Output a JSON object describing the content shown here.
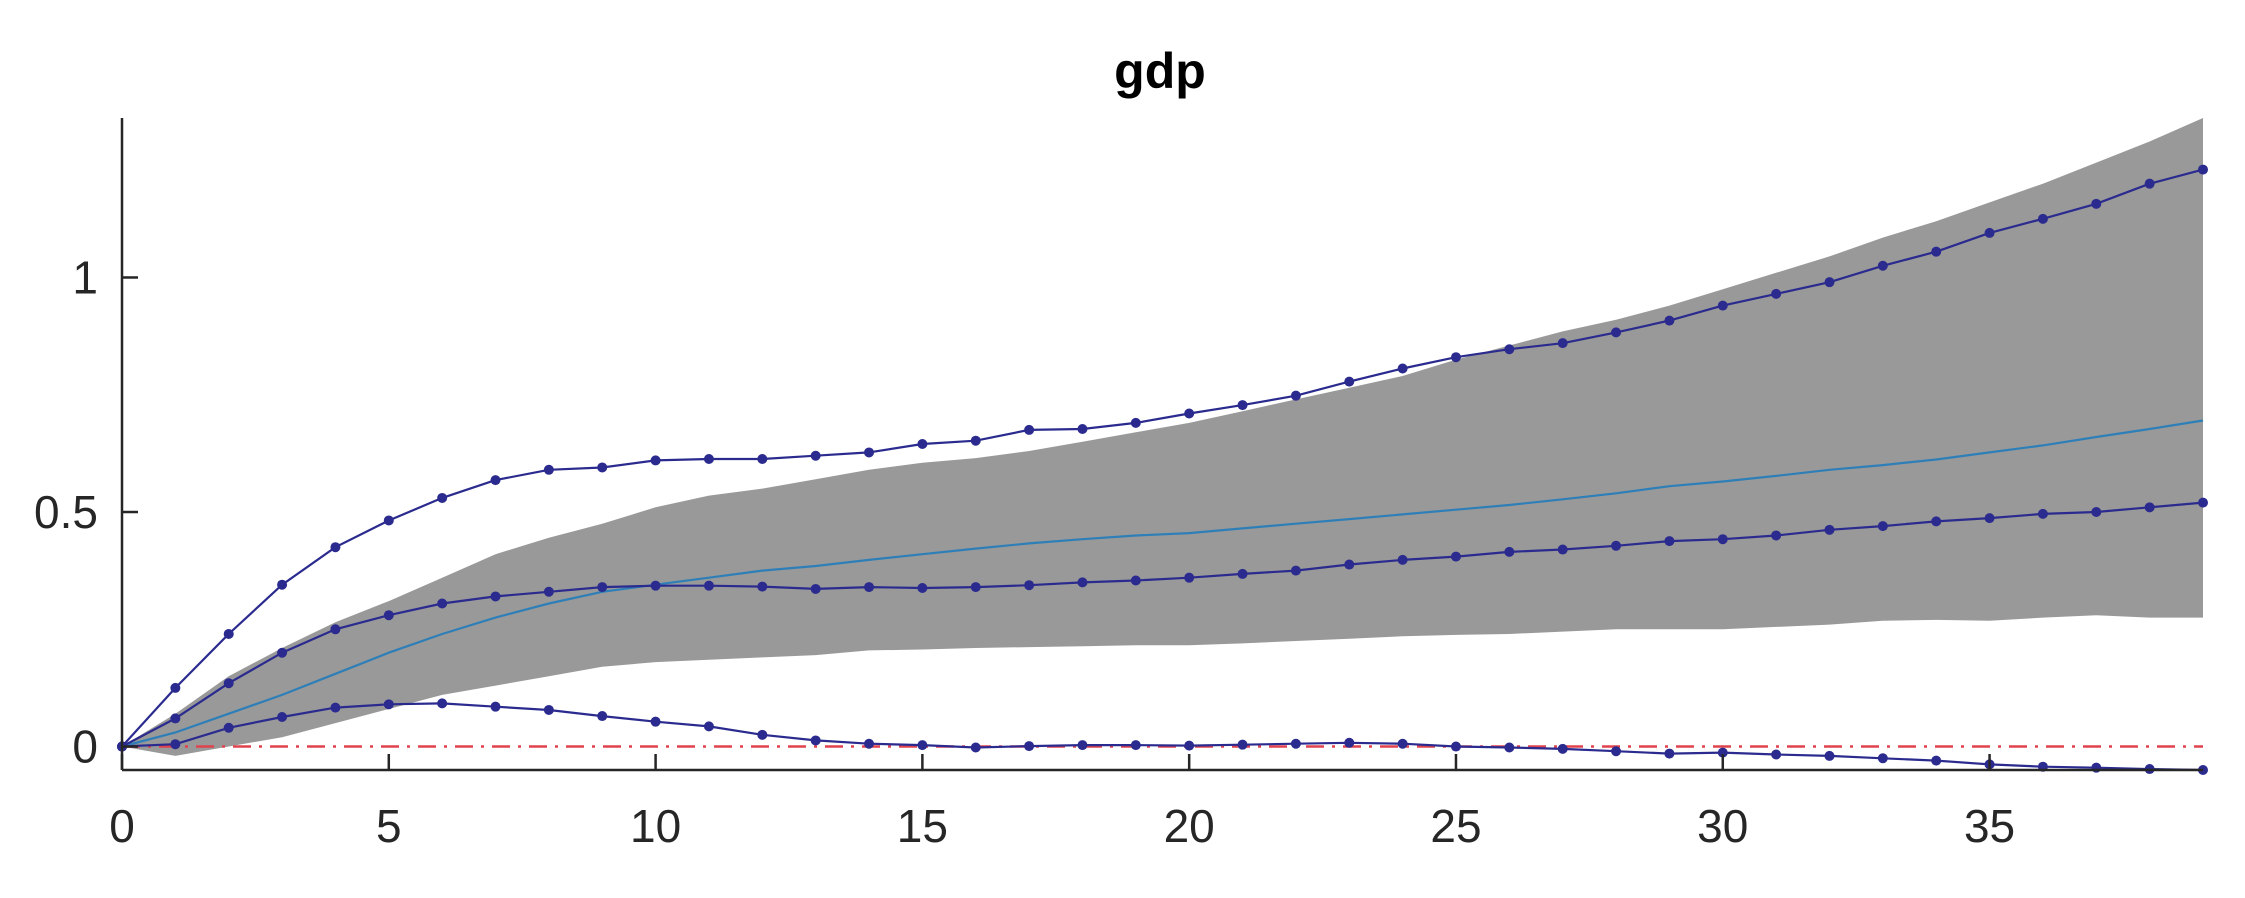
{
  "chart_data": {
    "type": "line",
    "title": "gdp",
    "xlabel": "",
    "ylabel": "",
    "xlim": [
      0,
      39
    ],
    "ylim": [
      -0.05,
      1.34
    ],
    "xticks": [
      0,
      5,
      10,
      15,
      20,
      25,
      30,
      35
    ],
    "xtick_labels": [
      "0",
      "5",
      "10",
      "15",
      "20",
      "25",
      "30",
      "35"
    ],
    "yticks": [
      0,
      0.5,
      1
    ],
    "ytick_labels": [
      "0",
      "0.5",
      "1"
    ],
    "grid": false,
    "legend": "none",
    "x": [
      0,
      1,
      2,
      3,
      4,
      5,
      6,
      7,
      8,
      9,
      10,
      11,
      12,
      13,
      14,
      15,
      16,
      17,
      18,
      19,
      20,
      21,
      22,
      23,
      24,
      25,
      26,
      27,
      28,
      29,
      30,
      31,
      32,
      33,
      34,
      35,
      36,
      37,
      38,
      39
    ],
    "band": {
      "color": "#999999",
      "lower": [
        0,
        -0.02,
        0,
        0.02,
        0.05,
        0.08,
        0.11,
        0.13,
        0.15,
        0.17,
        0.18,
        0.185,
        0.19,
        0.195,
        0.205,
        0.207,
        0.21,
        0.212,
        0.214,
        0.216,
        0.216,
        0.22,
        0.225,
        0.23,
        0.235,
        0.238,
        0.24,
        0.245,
        0.25,
        0.25,
        0.25,
        0.255,
        0.26,
        0.268,
        0.27,
        0.268,
        0.275,
        0.28,
        0.275,
        0.275
      ],
      "upper": [
        0,
        0.07,
        0.15,
        0.21,
        0.265,
        0.31,
        0.36,
        0.41,
        0.445,
        0.475,
        0.51,
        0.535,
        0.55,
        0.57,
        0.59,
        0.605,
        0.615,
        0.63,
        0.65,
        0.67,
        0.69,
        0.715,
        0.74,
        0.765,
        0.79,
        0.825,
        0.855,
        0.885,
        0.91,
        0.94,
        0.975,
        1.01,
        1.045,
        1.085,
        1.12,
        1.16,
        1.2,
        1.245,
        1.29,
        1.34
      ]
    },
    "series": [
      {
        "role": "median",
        "color": "#2e7fb8",
        "markers": false,
        "values": [
          0,
          0.03,
          0.07,
          0.11,
          0.155,
          0.2,
          0.24,
          0.275,
          0.305,
          0.33,
          0.345,
          0.36,
          0.375,
          0.385,
          0.398,
          0.41,
          0.422,
          0.433,
          0.442,
          0.45,
          0.455,
          0.465,
          0.475,
          0.485,
          0.495,
          0.505,
          0.515,
          0.527,
          0.54,
          0.555,
          0.565,
          0.577,
          0.59,
          0.6,
          0.612,
          0.627,
          0.642,
          0.66,
          0.677,
          0.695
        ]
      },
      {
        "role": "upper-dotted",
        "color": "#2b2b8f",
        "markers": true,
        "values": [
          0,
          0.125,
          0.24,
          0.345,
          0.425,
          0.482,
          0.53,
          0.568,
          0.59,
          0.595,
          0.61,
          0.613,
          0.613,
          0.62,
          0.627,
          0.645,
          0.652,
          0.675,
          0.677,
          0.69,
          0.71,
          0.728,
          0.748,
          0.778,
          0.806,
          0.83,
          0.847,
          0.86,
          0.883,
          0.908,
          0.94,
          0.965,
          0.99,
          1.025,
          1.055,
          1.095,
          1.125,
          1.157,
          1.2,
          1.23
        ]
      },
      {
        "role": "middle-dotted",
        "color": "#2b2b8f",
        "markers": true,
        "values": [
          0,
          0.06,
          0.135,
          0.2,
          0.25,
          0.28,
          0.305,
          0.32,
          0.33,
          0.34,
          0.343,
          0.343,
          0.341,
          0.336,
          0.34,
          0.338,
          0.34,
          0.344,
          0.35,
          0.354,
          0.36,
          0.368,
          0.375,
          0.388,
          0.398,
          0.405,
          0.415,
          0.42,
          0.428,
          0.438,
          0.442,
          0.45,
          0.462,
          0.47,
          0.48,
          0.487,
          0.496,
          0.5,
          0.51,
          0.52
        ]
      },
      {
        "role": "lower-dotted",
        "color": "#2b2b8f",
        "markers": true,
        "values": [
          0,
          0.005,
          0.04,
          0.063,
          0.083,
          0.09,
          0.092,
          0.085,
          0.078,
          0.065,
          0.053,
          0.043,
          0.025,
          0.013,
          0.006,
          0.003,
          -0.002,
          0.001,
          0.003,
          0.003,
          0.002,
          0.004,
          0.006,
          0.008,
          0.006,
          0.0,
          -0.002,
          -0.005,
          -0.01,
          -0.015,
          -0.013,
          -0.017,
          -0.02,
          -0.025,
          -0.03,
          -0.038,
          -0.043,
          -0.045,
          -0.048,
          -0.05
        ]
      }
    ],
    "reference_line": {
      "y": 0,
      "color": "#e0424e",
      "style": "dash-dot"
    }
  }
}
